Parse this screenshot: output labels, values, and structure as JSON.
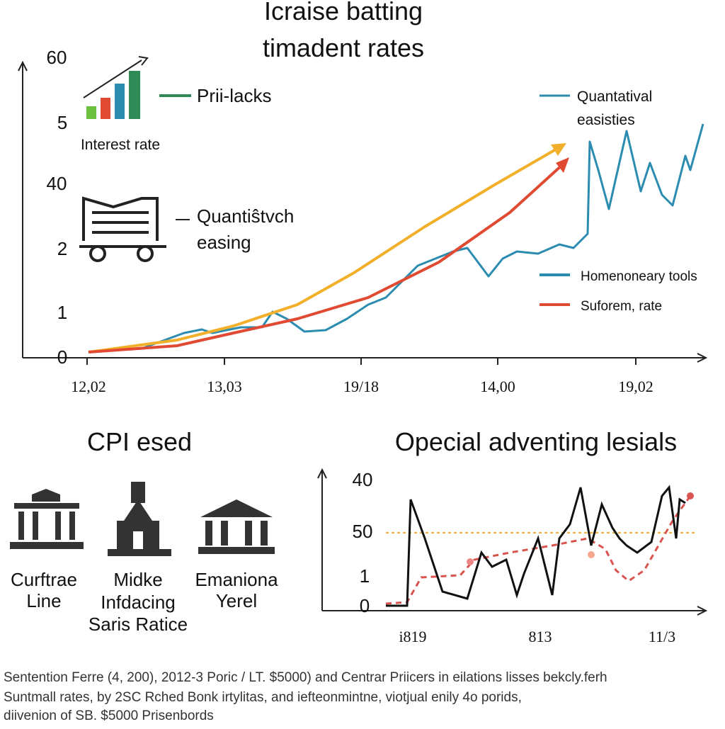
{
  "header": {
    "title_lines": [
      "Icraise batting",
      "timadent rates"
    ]
  },
  "top_chart": {
    "y_labels": [
      "60",
      "5",
      "40",
      "2",
      "1",
      "0"
    ],
    "x_labels": [
      "12,02",
      "13,03",
      "19/18",
      "14,00",
      "19,02"
    ],
    "legend": {
      "bars_label": "Prii-lacks",
      "bars_caption": "Interest rate",
      "easing_lines": [
        "Quantiŝtvch",
        "easing"
      ],
      "blue_top_lines": [
        "Quantatival",
        "easisties"
      ],
      "blue": "Homenoneary tools",
      "red": "Suforem, rate"
    }
  },
  "icons_section": {
    "title": "CPI esed",
    "items": [
      {
        "lines": [
          "Curftrae",
          "Line"
        ]
      },
      {
        "lines": [
          "Midke",
          "Infdacing",
          "Saris Ratice"
        ]
      },
      {
        "lines": [
          "Emaniona",
          "Yerel"
        ]
      }
    ]
  },
  "bottom_chart": {
    "title": "Opecial adventing lesials",
    "y_labels": [
      "40",
      "50",
      "1",
      "0"
    ],
    "x_labels": [
      "i819",
      "813",
      "11/3"
    ]
  },
  "footer": {
    "lines": [
      "Sentention Ferre (4, 200), 2012-3 Poric / LT. $5000) and Centrar Priicers in eilations lisses bekcly.ferh",
      "Suntmall rates, by 2SC Rched Bonk irtylitas, and iefteonmintne, viotjual enily 4o porids,",
      "diivenion of SB. $5000 Prisenbords"
    ]
  }
}
